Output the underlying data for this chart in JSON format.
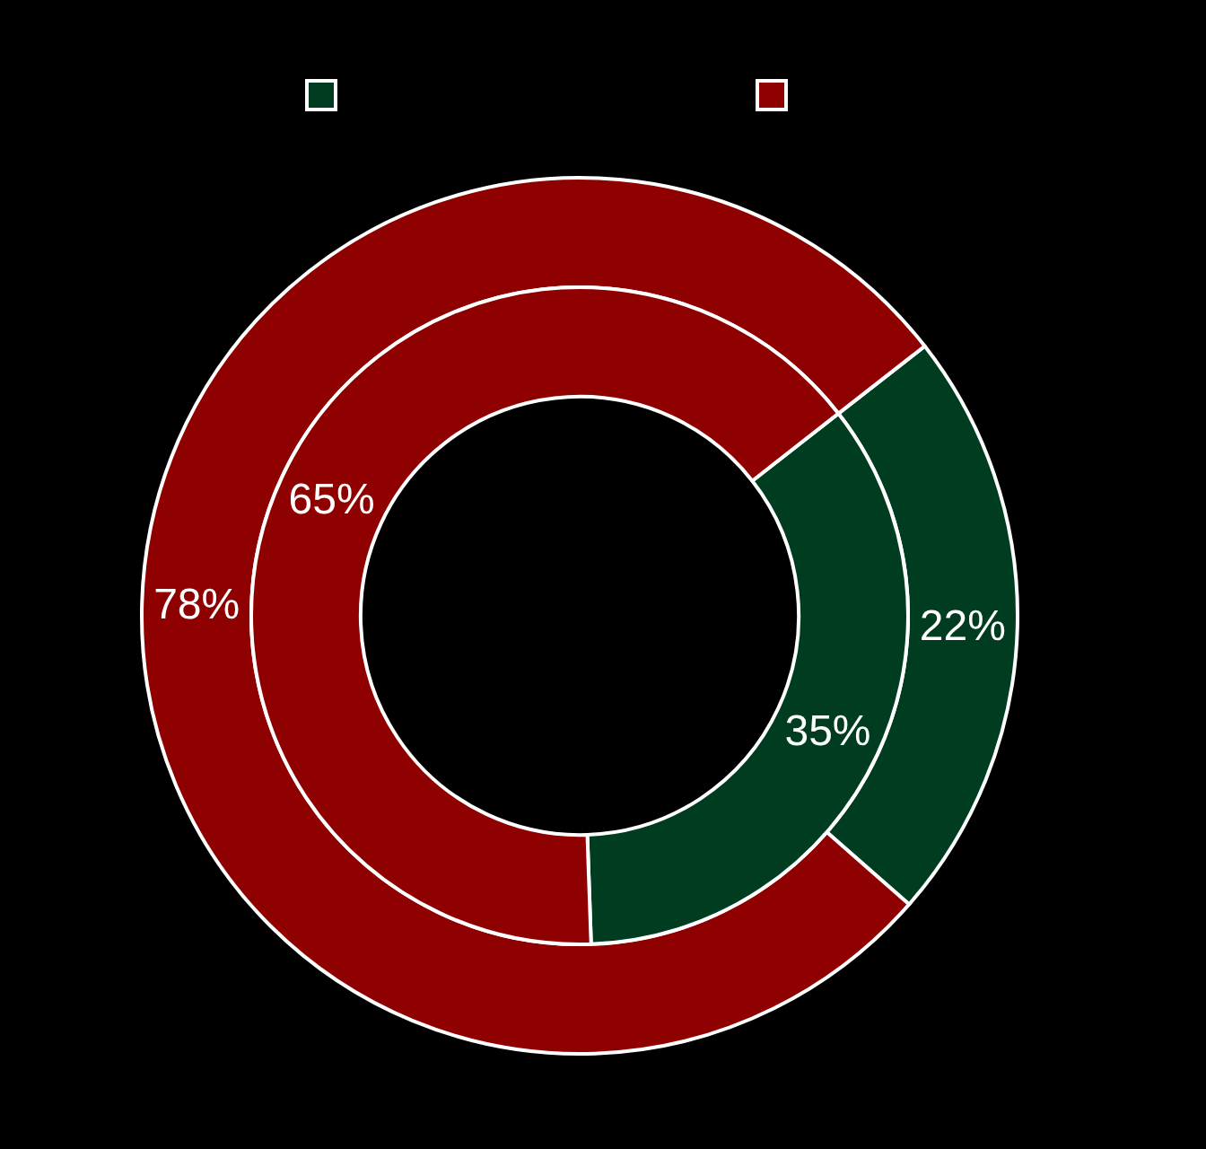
{
  "chart_data": {
    "type": "donut",
    "categories": [
      null,
      null
    ],
    "series": [
      {
        "colors": [
          "#003d20",
          "#8f0000"
        ],
        "values": [
          22,
          78
        ],
        "value_labels": [
          "22%",
          "78%"
        ]
      },
      {
        "colors": [
          "#003d20",
          "#8f0000"
        ],
        "values": [
          35,
          65
        ],
        "value_labels": [
          "35%",
          "65%"
        ]
      }
    ]
  }
}
